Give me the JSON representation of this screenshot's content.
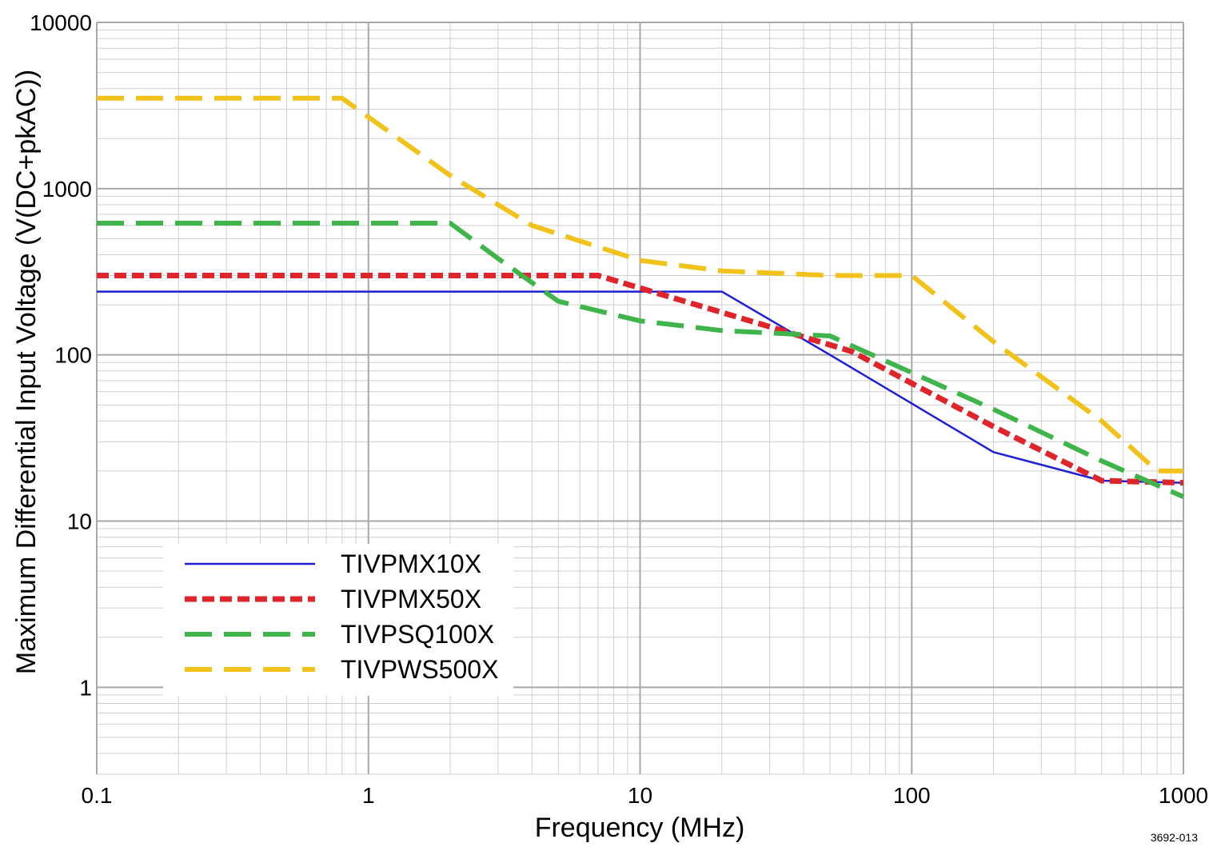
{
  "chart_data": {
    "type": "line",
    "title": "",
    "xlabel": "Frequency (MHz)",
    "ylabel": "Maximum Differential Input Voltage (V(DC+pkAC))",
    "xscale": "log",
    "yscale": "log",
    "xlim": [
      0.1,
      1000
    ],
    "ylim": [
      0.3,
      10000
    ],
    "grid": true,
    "legend_position": "bottom-left",
    "x_ticks": [
      "0.1",
      "1",
      "10",
      "100",
      "1000"
    ],
    "y_ticks": [
      "1",
      "10",
      "100",
      "1000",
      "10000"
    ],
    "series": [
      {
        "name": "TIVPMX10X",
        "color": "#1f1fd6",
        "style": "solid",
        "points": [
          [
            0.1,
            240
          ],
          [
            20,
            240
          ],
          [
            50,
            100
          ],
          [
            200,
            26
          ],
          [
            500,
            17.5
          ],
          [
            1000,
            17
          ]
        ]
      },
      {
        "name": "TIVPMX50X",
        "color": "#e0242b",
        "style": "dotted",
        "points": [
          [
            0.1,
            300
          ],
          [
            2.5,
            300
          ],
          [
            7,
            300
          ],
          [
            20,
            180
          ],
          [
            60,
            105
          ],
          [
            200,
            37
          ],
          [
            500,
            17.5
          ],
          [
            1000,
            17
          ]
        ]
      },
      {
        "name": "TIVPSQ100X",
        "color": "#3fb44a",
        "style": "dashed",
        "points": [
          [
            0.1,
            620
          ],
          [
            2,
            620
          ],
          [
            3,
            380
          ],
          [
            5,
            210
          ],
          [
            10,
            160
          ],
          [
            20,
            140
          ],
          [
            50,
            130
          ],
          [
            200,
            47
          ],
          [
            500,
            23
          ],
          [
            1000,
            14
          ]
        ]
      },
      {
        "name": "TIVPWS500X",
        "color": "#f0c21a",
        "style": "dashed",
        "points": [
          [
            0.1,
            3500
          ],
          [
            0.8,
            3500
          ],
          [
            2,
            1200
          ],
          [
            4,
            600
          ],
          [
            10,
            370
          ],
          [
            20,
            320
          ],
          [
            50,
            300
          ],
          [
            100,
            300
          ],
          [
            200,
            120
          ],
          [
            500,
            40
          ],
          [
            800,
            20
          ],
          [
            1000,
            20
          ]
        ]
      }
    ]
  },
  "figure_id": "3692-013"
}
